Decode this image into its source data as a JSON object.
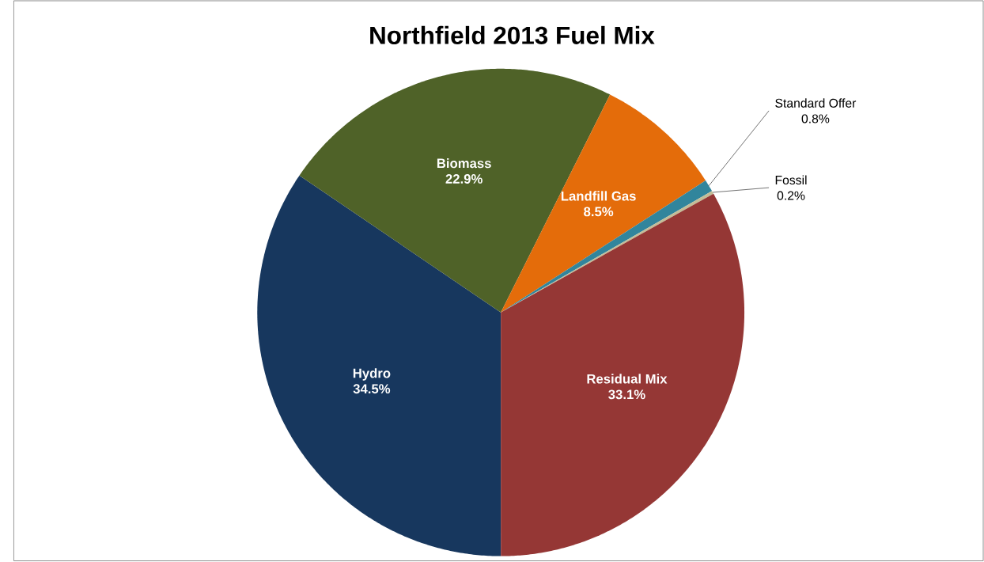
{
  "chart_data": {
    "type": "pie",
    "title": "Northfield 2013 Fuel Mix",
    "categories": [
      "Hydro",
      "Biomass",
      "Landfill Gas",
      "Standard Offer",
      "Fossil",
      "Residual Mix"
    ],
    "values": [
      34.5,
      22.9,
      8.5,
      0.8,
      0.2,
      33.1
    ],
    "colors": [
      "#17375e",
      "#4f6228",
      "#e46c0a",
      "#31859c",
      "#c4bd97",
      "#953735"
    ],
    "value_labels": [
      "34.5%",
      "22.9%",
      "8.5%",
      "0.8%",
      "0.2%",
      "33.1%"
    ]
  }
}
